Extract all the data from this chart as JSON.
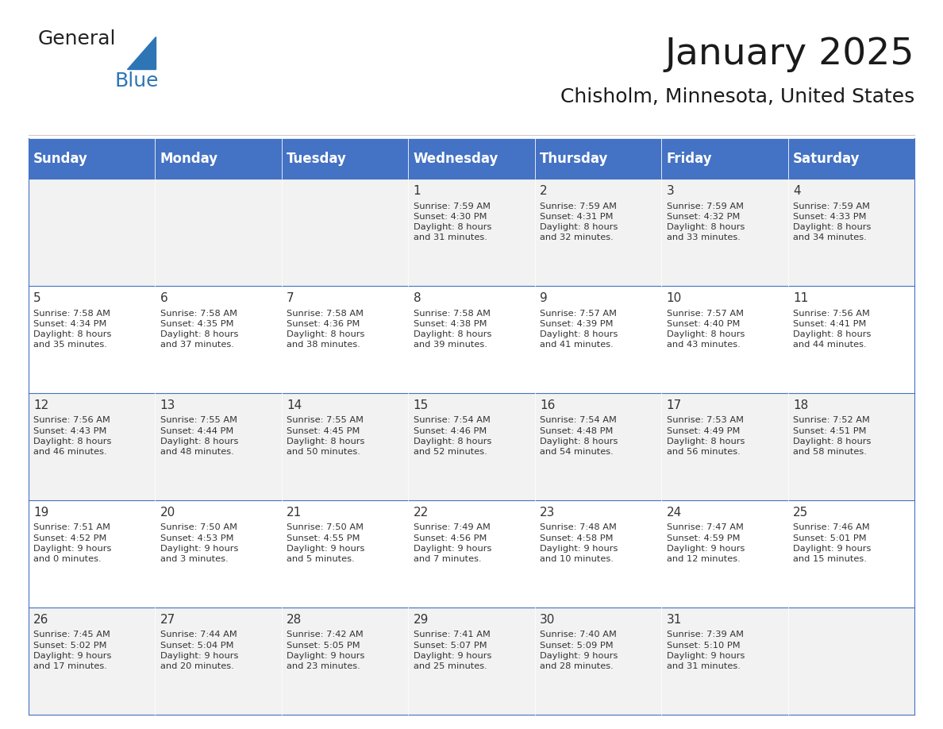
{
  "title": "January 2025",
  "subtitle": "Chisholm, Minnesota, United States",
  "header_bg": "#4472C4",
  "header_text_color": "#FFFFFF",
  "cell_bg_odd": "#F2F2F2",
  "cell_bg_even": "#FFFFFF",
  "border_color": "#4472C4",
  "text_color": "#333333",
  "days_of_week": [
    "Sunday",
    "Monday",
    "Tuesday",
    "Wednesday",
    "Thursday",
    "Friday",
    "Saturday"
  ],
  "weeks": [
    [
      {
        "day": "",
        "info": ""
      },
      {
        "day": "",
        "info": ""
      },
      {
        "day": "",
        "info": ""
      },
      {
        "day": "1",
        "info": "Sunrise: 7:59 AM\nSunset: 4:30 PM\nDaylight: 8 hours\nand 31 minutes."
      },
      {
        "day": "2",
        "info": "Sunrise: 7:59 AM\nSunset: 4:31 PM\nDaylight: 8 hours\nand 32 minutes."
      },
      {
        "day": "3",
        "info": "Sunrise: 7:59 AM\nSunset: 4:32 PM\nDaylight: 8 hours\nand 33 minutes."
      },
      {
        "day": "4",
        "info": "Sunrise: 7:59 AM\nSunset: 4:33 PM\nDaylight: 8 hours\nand 34 minutes."
      }
    ],
    [
      {
        "day": "5",
        "info": "Sunrise: 7:58 AM\nSunset: 4:34 PM\nDaylight: 8 hours\nand 35 minutes."
      },
      {
        "day": "6",
        "info": "Sunrise: 7:58 AM\nSunset: 4:35 PM\nDaylight: 8 hours\nand 37 minutes."
      },
      {
        "day": "7",
        "info": "Sunrise: 7:58 AM\nSunset: 4:36 PM\nDaylight: 8 hours\nand 38 minutes."
      },
      {
        "day": "8",
        "info": "Sunrise: 7:58 AM\nSunset: 4:38 PM\nDaylight: 8 hours\nand 39 minutes."
      },
      {
        "day": "9",
        "info": "Sunrise: 7:57 AM\nSunset: 4:39 PM\nDaylight: 8 hours\nand 41 minutes."
      },
      {
        "day": "10",
        "info": "Sunrise: 7:57 AM\nSunset: 4:40 PM\nDaylight: 8 hours\nand 43 minutes."
      },
      {
        "day": "11",
        "info": "Sunrise: 7:56 AM\nSunset: 4:41 PM\nDaylight: 8 hours\nand 44 minutes."
      }
    ],
    [
      {
        "day": "12",
        "info": "Sunrise: 7:56 AM\nSunset: 4:43 PM\nDaylight: 8 hours\nand 46 minutes."
      },
      {
        "day": "13",
        "info": "Sunrise: 7:55 AM\nSunset: 4:44 PM\nDaylight: 8 hours\nand 48 minutes."
      },
      {
        "day": "14",
        "info": "Sunrise: 7:55 AM\nSunset: 4:45 PM\nDaylight: 8 hours\nand 50 minutes."
      },
      {
        "day": "15",
        "info": "Sunrise: 7:54 AM\nSunset: 4:46 PM\nDaylight: 8 hours\nand 52 minutes."
      },
      {
        "day": "16",
        "info": "Sunrise: 7:54 AM\nSunset: 4:48 PM\nDaylight: 8 hours\nand 54 minutes."
      },
      {
        "day": "17",
        "info": "Sunrise: 7:53 AM\nSunset: 4:49 PM\nDaylight: 8 hours\nand 56 minutes."
      },
      {
        "day": "18",
        "info": "Sunrise: 7:52 AM\nSunset: 4:51 PM\nDaylight: 8 hours\nand 58 minutes."
      }
    ],
    [
      {
        "day": "19",
        "info": "Sunrise: 7:51 AM\nSunset: 4:52 PM\nDaylight: 9 hours\nand 0 minutes."
      },
      {
        "day": "20",
        "info": "Sunrise: 7:50 AM\nSunset: 4:53 PM\nDaylight: 9 hours\nand 3 minutes."
      },
      {
        "day": "21",
        "info": "Sunrise: 7:50 AM\nSunset: 4:55 PM\nDaylight: 9 hours\nand 5 minutes."
      },
      {
        "day": "22",
        "info": "Sunrise: 7:49 AM\nSunset: 4:56 PM\nDaylight: 9 hours\nand 7 minutes."
      },
      {
        "day": "23",
        "info": "Sunrise: 7:48 AM\nSunset: 4:58 PM\nDaylight: 9 hours\nand 10 minutes."
      },
      {
        "day": "24",
        "info": "Sunrise: 7:47 AM\nSunset: 4:59 PM\nDaylight: 9 hours\nand 12 minutes."
      },
      {
        "day": "25",
        "info": "Sunrise: 7:46 AM\nSunset: 5:01 PM\nDaylight: 9 hours\nand 15 minutes."
      }
    ],
    [
      {
        "day": "26",
        "info": "Sunrise: 7:45 AM\nSunset: 5:02 PM\nDaylight: 9 hours\nand 17 minutes."
      },
      {
        "day": "27",
        "info": "Sunrise: 7:44 AM\nSunset: 5:04 PM\nDaylight: 9 hours\nand 20 minutes."
      },
      {
        "day": "28",
        "info": "Sunrise: 7:42 AM\nSunset: 5:05 PM\nDaylight: 9 hours\nand 23 minutes."
      },
      {
        "day": "29",
        "info": "Sunrise: 7:41 AM\nSunset: 5:07 PM\nDaylight: 9 hours\nand 25 minutes."
      },
      {
        "day": "30",
        "info": "Sunrise: 7:40 AM\nSunset: 5:09 PM\nDaylight: 9 hours\nand 28 minutes."
      },
      {
        "day": "31",
        "info": "Sunrise: 7:39 AM\nSunset: 5:10 PM\nDaylight: 9 hours\nand 31 minutes."
      },
      {
        "day": "",
        "info": ""
      }
    ]
  ],
  "logo_general_color": "#222222",
  "logo_blue_color": "#2E75B6",
  "logo_triangle_color": "#2E75B6"
}
